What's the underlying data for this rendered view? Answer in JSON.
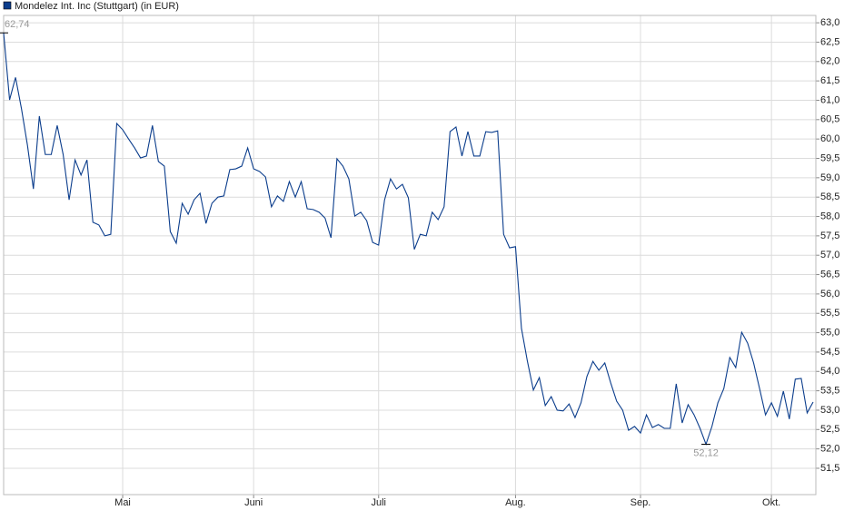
{
  "chart_data": {
    "type": "line",
    "grid": true,
    "ylim": [
      50.82,
      63.19
    ],
    "yticks": [
      {
        "value": 51.5,
        "label": "51,5"
      },
      {
        "value": 52.0,
        "label": "52,0"
      },
      {
        "value": 52.5,
        "label": "52,5"
      },
      {
        "value": 53.0,
        "label": "53,0"
      },
      {
        "value": 53.5,
        "label": "53,5"
      },
      {
        "value": 54.0,
        "label": "54,0"
      },
      {
        "value": 54.5,
        "label": "54,5"
      },
      {
        "value": 55.0,
        "label": "55,0"
      },
      {
        "value": 55.5,
        "label": "55,5"
      },
      {
        "value": 56.0,
        "label": "56,0"
      },
      {
        "value": 56.5,
        "label": "56,5"
      },
      {
        "value": 57.0,
        "label": "57,0"
      },
      {
        "value": 57.5,
        "label": "57,5"
      },
      {
        "value": 58.0,
        "label": "58,0"
      },
      {
        "value": 58.5,
        "label": "58,5"
      },
      {
        "value": 59.0,
        "label": "59,0"
      },
      {
        "value": 59.5,
        "label": "59,5"
      },
      {
        "value": 60.0,
        "label": "60,0"
      },
      {
        "value": 60.5,
        "label": "60,5"
      },
      {
        "value": 61.0,
        "label": "61,0"
      },
      {
        "value": 61.5,
        "label": "61,5"
      },
      {
        "value": 62.0,
        "label": "62,0"
      },
      {
        "value": 62.5,
        "label": "62,5"
      },
      {
        "value": 63.0,
        "label": "63,0"
      }
    ],
    "categories": [
      null,
      null,
      null,
      null,
      null,
      null,
      null,
      null,
      null,
      null,
      null,
      null,
      null,
      null,
      null,
      null,
      null,
      null,
      null,
      null,
      "Mai",
      null,
      null,
      null,
      null,
      null,
      null,
      null,
      null,
      null,
      null,
      null,
      null,
      null,
      null,
      null,
      null,
      null,
      null,
      null,
      null,
      null,
      "Juni",
      null,
      null,
      null,
      null,
      null,
      null,
      null,
      null,
      null,
      null,
      null,
      null,
      null,
      null,
      null,
      null,
      null,
      null,
      null,
      null,
      "Juli",
      null,
      null,
      null,
      null,
      null,
      null,
      null,
      null,
      null,
      null,
      null,
      null,
      null,
      null,
      null,
      null,
      null,
      null,
      null,
      null,
      null,
      null,
      "Aug.",
      null,
      null,
      null,
      null,
      null,
      null,
      null,
      null,
      null,
      null,
      null,
      null,
      null,
      null,
      null,
      null,
      null,
      null,
      null,
      null,
      "Sep.",
      null,
      null,
      null,
      null,
      null,
      null,
      null,
      null,
      null,
      null,
      null,
      null,
      null,
      null,
      null,
      null,
      null,
      null,
      null,
      null,
      null,
      "Okt.",
      null,
      null,
      null,
      null,
      null,
      null,
      null
    ],
    "series": [
      {
        "name": "Mondelez Int. Inc (Stuttgart) (in EUR)",
        "color": "#0b3d8c",
        "values": [
          62.74,
          61.01,
          61.59,
          60.78,
          59.84,
          58.71,
          60.59,
          59.6,
          59.6,
          60.35,
          59.6,
          58.43,
          59.46,
          59.07,
          59.46,
          57.85,
          57.78,
          57.5,
          57.54,
          60.4,
          60.24,
          60.0,
          59.77,
          59.51,
          59.56,
          60.35,
          59.42,
          59.3,
          57.61,
          57.31,
          58.34,
          58.06,
          58.43,
          58.6,
          57.82,
          58.34,
          58.5,
          58.53,
          59.21,
          59.23,
          59.3,
          59.77,
          59.23,
          59.16,
          59.02,
          58.25,
          58.53,
          58.39,
          58.9,
          58.5,
          58.9,
          58.2,
          58.18,
          58.11,
          57.96,
          57.45,
          59.49,
          59.3,
          58.97,
          58.01,
          58.11,
          57.89,
          57.33,
          57.26,
          58.43,
          58.97,
          58.71,
          58.83,
          58.48,
          57.15,
          57.54,
          57.5,
          58.11,
          57.92,
          58.25,
          60.19,
          60.31,
          59.56,
          60.19,
          59.56,
          59.56,
          60.19,
          60.17,
          60.21,
          57.54,
          57.19,
          57.22,
          55.11,
          54.26,
          53.52,
          53.84,
          53.12,
          53.35,
          53.0,
          52.98,
          53.16,
          52.81,
          53.19,
          53.87,
          54.26,
          54.03,
          54.22,
          53.7,
          53.23,
          53.0,
          52.48,
          52.58,
          52.41,
          52.88,
          52.55,
          52.63,
          52.53,
          52.53,
          53.68,
          52.67,
          53.14,
          52.88,
          52.53,
          52.12,
          52.58,
          53.19,
          53.56,
          54.36,
          54.1,
          55.01,
          54.73,
          54.22,
          53.56,
          52.88,
          53.19,
          52.84,
          53.49,
          52.77,
          53.8,
          53.82,
          52.93,
          53.21
        ],
        "value_labels": [
          "62,74",
          null,
          null,
          null,
          null,
          null,
          null,
          null,
          null,
          null,
          null,
          null,
          null,
          null,
          null,
          null,
          null,
          null,
          null,
          null,
          null,
          null,
          null,
          null,
          null,
          null,
          null,
          null,
          null,
          null,
          null,
          null,
          null,
          null,
          null,
          null,
          null,
          null,
          null,
          null,
          null,
          null,
          null,
          null,
          null,
          null,
          null,
          null,
          null,
          null,
          null,
          null,
          null,
          null,
          null,
          null,
          null,
          null,
          null,
          null,
          null,
          null,
          null,
          null,
          null,
          null,
          null,
          null,
          null,
          null,
          null,
          null,
          null,
          null,
          null,
          null,
          null,
          null,
          null,
          null,
          null,
          null,
          null,
          null,
          null,
          null,
          null,
          null,
          null,
          null,
          null,
          null,
          null,
          null,
          null,
          null,
          null,
          null,
          null,
          null,
          null,
          null,
          null,
          null,
          null,
          null,
          null,
          null,
          null,
          null,
          null,
          null,
          null,
          null,
          null,
          null,
          null,
          null,
          "52,12",
          null,
          null,
          null,
          null,
          null,
          null,
          null,
          null,
          null,
          null,
          null,
          null,
          null,
          null,
          null,
          null,
          null,
          null
        ]
      }
    ]
  }
}
